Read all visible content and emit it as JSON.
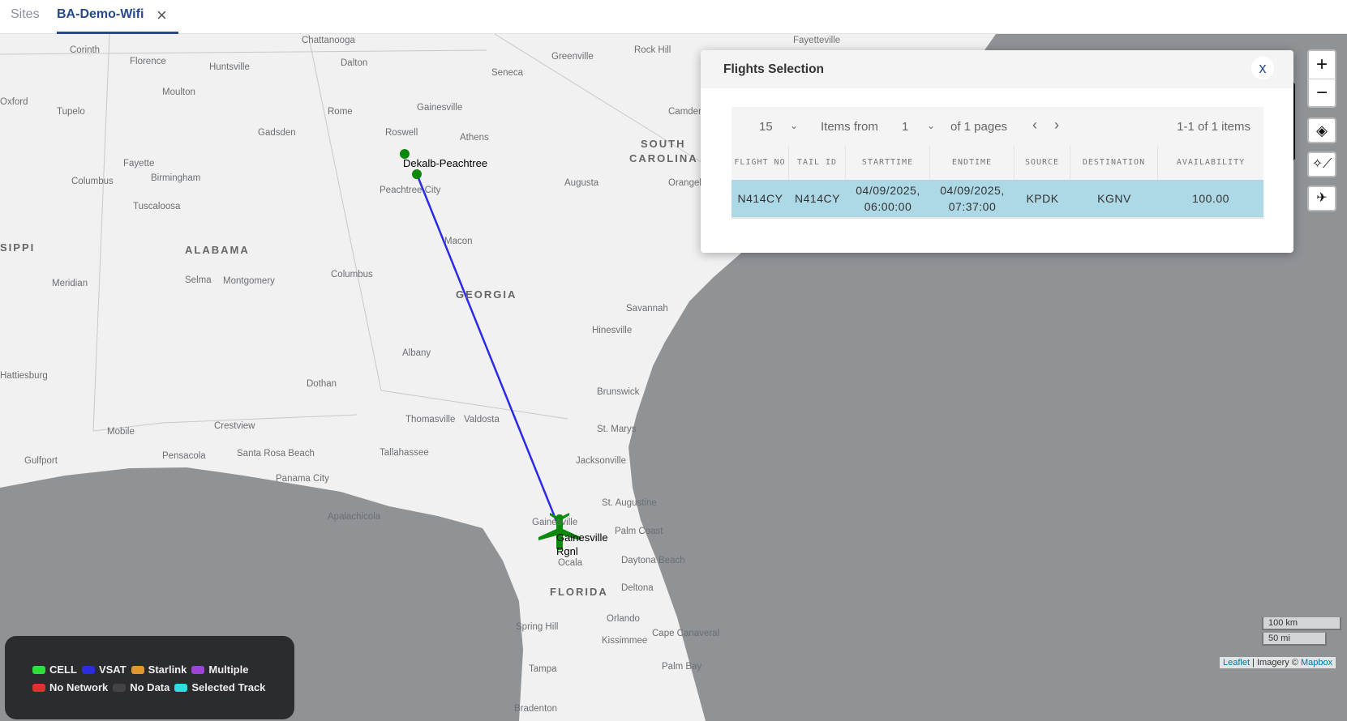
{
  "tabs": {
    "sites": "Sites",
    "active": "BA-Demo-Wifi"
  },
  "map": {
    "labels": [
      "Chattanooga",
      "Fayetteville",
      "Corinth",
      "Florence",
      "Huntsville",
      "Dalton",
      "Greenville",
      "Rock Hill",
      "Seneca",
      "Moulton",
      "Oxford",
      "Tupelo",
      "Rome",
      "Gainesville",
      "Camden",
      "Gadsden",
      "Roswell",
      "Athens",
      "SOUTH",
      "CAROLINA",
      "Fayette",
      "Birmingham",
      "Columbus",
      "Tuscaloosa",
      "Peachtree City",
      "Augusta",
      "Orangeburg",
      "SIPPI",
      "ALABAMA",
      "Macon",
      "Meridian",
      "Selma",
      "Montgomery",
      "Columbus",
      "GEORGIA",
      "Savannah",
      "Hinesville",
      "Albany",
      "Hattiesburg",
      "Dothan",
      "Brunswick",
      "Thomasville",
      "Valdosta",
      "St. Marys",
      "Crestview",
      "Mobile",
      "Pensacola",
      "Santa Rosa Beach",
      "Tallahassee",
      "Jacksonville",
      "Gulfport",
      "Panama City",
      "Apalachicola",
      "St. Augustine",
      "Gainesville",
      "Palm Coast",
      "Ocala",
      "Daytona Beach",
      "FLORIDA",
      "Deltona",
      "Orlando",
      "Spring Hill",
      "Kissimmee",
      "Cape Canaveral",
      "Tampa",
      "Palm Bay",
      "Bradenton"
    ],
    "markers": {
      "origin": "Dekalb-Peachtree",
      "destination": "Gainesville Rgnl"
    },
    "track_color": "#2a2ae8",
    "marker_color": "#0a8a0a",
    "scale": {
      "km": "100 km",
      "mi": "50 mi"
    },
    "attribution": {
      "leaflet": "Leaflet",
      "sep": " | Imagery © ",
      "mapbox": "Mapbox"
    }
  },
  "controls": {
    "zoom_in": "+",
    "zoom_out": "−"
  },
  "dialog": {
    "title": "Flights Selection",
    "close": "x",
    "pager": {
      "page_size": "15",
      "items_from": "Items from",
      "page": "1",
      "of_pages": "of 1 pages",
      "prev": "‹",
      "next": "›",
      "summary": "1-1 of 1 items"
    },
    "columns": [
      "FLIGHT NO",
      "TAIL ID",
      "STARTTIME",
      "ENDTIME",
      "SOURCE",
      "DESTINATION",
      "AVAILABILITY"
    ],
    "rows": [
      {
        "flight_no": "N414CY",
        "tail_id": "N414CY",
        "start": "04/09/2025, 06:00:00",
        "end": "04/09/2025, 07:37:00",
        "source": "KPDK",
        "destination": "KGNV",
        "availability": "100.00"
      }
    ]
  },
  "legend": [
    {
      "label": "CELL",
      "color": "#2ee03a"
    },
    {
      "label": "VSAT",
      "color": "#2b2be0"
    },
    {
      "label": "Starlink",
      "color": "#e0982e"
    },
    {
      "label": "Multiple",
      "color": "#9b45d6"
    },
    {
      "label": "No Network",
      "color": "#e03030"
    },
    {
      "label": "No Data",
      "color": "#444247"
    },
    {
      "label": "Selected Track",
      "color": "#2edde0"
    }
  ]
}
